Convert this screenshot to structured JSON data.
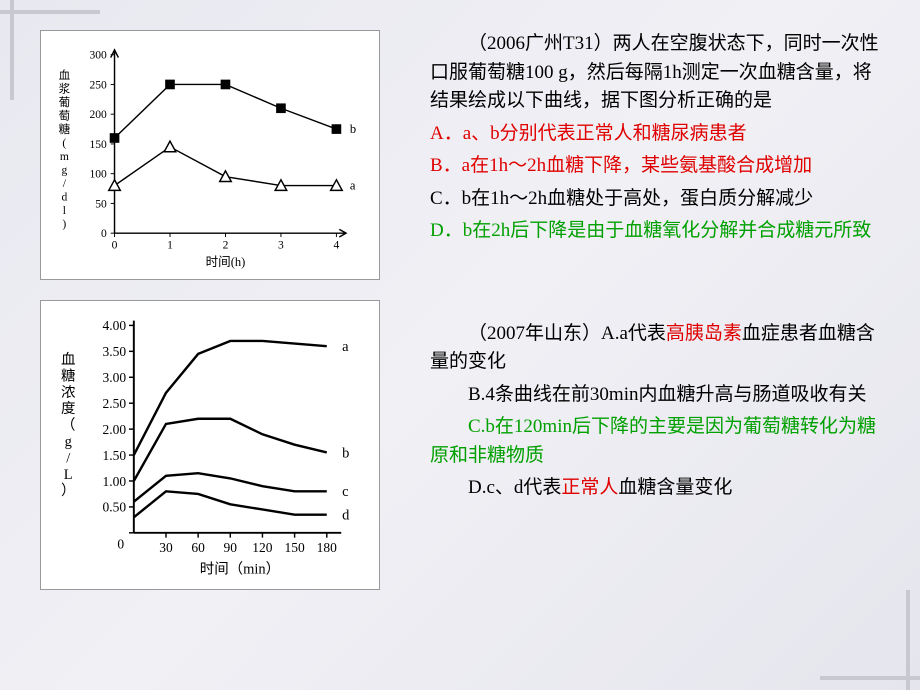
{
  "q1": {
    "stem": "（2006广州T31）两人在空腹状态下，同时一次性口服葡萄糖100 g，然后每隔1h测定一次血糖含量，将结果绘成以下曲线，据下图分析正确的是",
    "optA": "A．a、b分别代表正常人和糖尿病患者",
    "optB": "B．a在1h～2h血糖下降，某些氨基酸合成增加",
    "optC": "C．b在1h～2h血糖处于高处，蛋白质分解减少",
    "optD": "D．b在2h后下降是由于血糖氧化分解并合成糖元所致"
  },
  "q2": {
    "optA_pre": "（2007年山东）A.a代表",
    "optA_hl": "高胰岛素",
    "optA_post": "血症患者血糖含量的变化",
    "optB": "B.4条曲线在前30min内血糖升高与肠道吸收有关",
    "optC": "C.b在120min后下降的主要是因为葡萄糖转化为糖原和非糖物质",
    "optD_pre": "D.c、d代表",
    "optD_hl": "正常人",
    "optD_post": "血糖含量变化"
  },
  "chart1": {
    "ylabel": "血浆葡萄糖(mg/dl)",
    "xlabel": "时间(h)",
    "x": [
      0,
      1,
      2,
      3,
      4
    ],
    "yticks": [
      0,
      50,
      100,
      150,
      200,
      250,
      300
    ],
    "series_b": [
      160,
      250,
      250,
      210,
      175
    ],
    "series_a": [
      80,
      145,
      95,
      80,
      80
    ],
    "label_a": "a",
    "label_b": "b",
    "marker_b": "square-filled",
    "marker_a": "triangle-open",
    "line_color": "#000000",
    "bg": "#ffffff"
  },
  "chart2": {
    "ylabel": "血糖浓度（g/L）",
    "xlabel": "时间（min）",
    "x": [
      0,
      30,
      60,
      90,
      120,
      150,
      180
    ],
    "yticks": [
      0,
      0.5,
      1.0,
      1.5,
      2.0,
      2.5,
      3.0,
      3.5,
      4.0
    ],
    "series_a": [
      1.5,
      2.7,
      3.45,
      3.7,
      3.7,
      3.65,
      3.6
    ],
    "series_b": [
      1.0,
      2.1,
      2.2,
      2.2,
      1.9,
      1.7,
      1.55
    ],
    "series_c": [
      0.6,
      1.1,
      1.15,
      1.05,
      0.9,
      0.8,
      0.8
    ],
    "series_d": [
      0.3,
      0.8,
      0.75,
      0.55,
      0.45,
      0.35,
      0.35
    ],
    "label_a": "a",
    "label_b": "b",
    "label_c": "c",
    "label_d": "d",
    "line_color": "#000000",
    "bg": "#ffffff"
  },
  "colors": {
    "black": "#000000",
    "red": "#e00000",
    "green": "#00a000"
  }
}
